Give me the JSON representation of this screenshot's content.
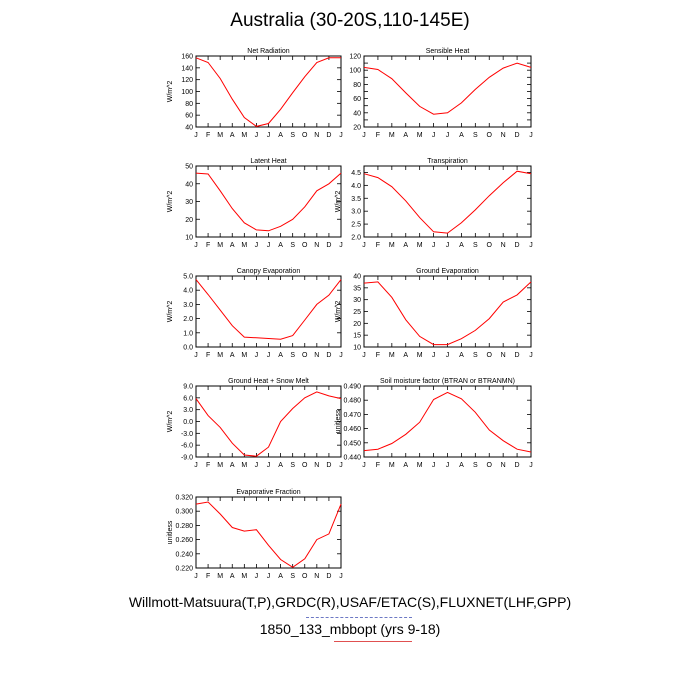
{
  "page": {
    "title": "Australia (30-20S,110-145E)",
    "footer_line1": "Willmott-Matsuura(T,P),GRDC(R),USAF/ETAC(S),FLUXNET(LHF,GPP)",
    "footer_line2": "1850_133_mbbopt (yrs 9-18)"
  },
  "colors": {
    "line": "#ff0000",
    "axis": "#000000",
    "underline1": "#6c78c4",
    "underline2": "#e05050"
  },
  "chart_data": [
    {
      "type": "line",
      "title": "Net Radiation",
      "ylabel": "W/m^2",
      "x": [
        "J",
        "F",
        "M",
        "A",
        "M",
        "J",
        "J",
        "A",
        "S",
        "O",
        "N",
        "D",
        "J"
      ],
      "values": [
        157,
        149,
        122,
        87,
        56,
        41,
        46,
        70,
        98,
        125,
        149,
        157,
        157
      ],
      "ylim": [
        40,
        160
      ],
      "yticks": [
        40,
        60,
        80,
        100,
        120,
        140,
        160
      ],
      "ytick_labels": [
        "40",
        "60",
        "80",
        "100",
        "120",
        "140",
        "160"
      ]
    },
    {
      "type": "line",
      "title": "Sensible Heat",
      "ylabel": "",
      "x": [
        "J",
        "F",
        "M",
        "A",
        "M",
        "J",
        "J",
        "A",
        "S",
        "O",
        "N",
        "D",
        "J"
      ],
      "values": [
        104,
        101,
        88,
        68,
        49,
        38,
        40,
        54,
        73,
        90,
        103,
        110,
        104
      ],
      "ylim": [
        20,
        120
      ],
      "yticks": [
        20,
        30,
        40,
        50,
        60,
        70,
        80,
        90,
        100,
        110,
        120
      ],
      "ytick_labels": [
        "20",
        "",
        "40",
        "",
        "60",
        "",
        "80",
        "",
        "100",
        "",
        "120"
      ]
    },
    {
      "type": "line",
      "title": "Latent Heat",
      "ylabel": "W/m^2",
      "x": [
        "J",
        "F",
        "M",
        "A",
        "M",
        "J",
        "J",
        "A",
        "S",
        "O",
        "N",
        "D",
        "J"
      ],
      "values": [
        46,
        45.5,
        36,
        26,
        18,
        14,
        13.5,
        16,
        20,
        27,
        36,
        40,
        46
      ],
      "ylim": [
        10,
        50
      ],
      "yticks": [
        10,
        20,
        30,
        40,
        50
      ],
      "ytick_labels": [
        "10",
        "20",
        "30",
        "40",
        "50"
      ]
    },
    {
      "type": "line",
      "title": "Transpiration",
      "ylabel": "W/m^2",
      "x": [
        "J",
        "F",
        "M",
        "A",
        "M",
        "J",
        "J",
        "A",
        "S",
        "O",
        "N",
        "D",
        "J"
      ],
      "values": [
        4.45,
        4.3,
        3.95,
        3.4,
        2.75,
        2.2,
        2.15,
        2.55,
        3.05,
        3.6,
        4.1,
        4.55,
        4.45
      ],
      "ylim": [
        2.0,
        4.75
      ],
      "yticks": [
        2.0,
        2.5,
        3.0,
        3.5,
        4.0,
        4.5
      ],
      "ytick_labels": [
        "2.0",
        "2.5",
        "3.0",
        "3.5",
        "4.0",
        "4.5"
      ]
    },
    {
      "type": "line",
      "title": "Canopy Evaporation",
      "ylabel": "W/m^2",
      "x": [
        "J",
        "F",
        "M",
        "A",
        "M",
        "J",
        "J",
        "A",
        "S",
        "O",
        "N",
        "D",
        "J"
      ],
      "values": [
        4.75,
        3.7,
        2.6,
        1.5,
        0.7,
        0.65,
        0.6,
        0.55,
        0.8,
        1.9,
        3.0,
        3.65,
        4.75
      ],
      "ylim": [
        0.0,
        5.0
      ],
      "yticks": [
        0.0,
        1.0,
        2.0,
        3.0,
        4.0,
        5.0
      ],
      "ytick_labels": [
        "0.0",
        "1.0",
        "2.0",
        "3.0",
        "4.0",
        "5.0"
      ]
    },
    {
      "type": "line",
      "title": "Ground Evaporation",
      "ylabel": "W/m^2",
      "x": [
        "J",
        "F",
        "M",
        "A",
        "M",
        "J",
        "J",
        "A",
        "S",
        "O",
        "N",
        "D",
        "J"
      ],
      "values": [
        37,
        37.5,
        31,
        21.5,
        14.5,
        11,
        11,
        13.5,
        17,
        22,
        29,
        32,
        37.5
      ],
      "ylim": [
        10,
        40
      ],
      "yticks": [
        10,
        15,
        20,
        25,
        30,
        35,
        40
      ],
      "ytick_labels": [
        "10",
        "15",
        "20",
        "25",
        "30",
        "35",
        "40"
      ]
    },
    {
      "type": "line",
      "title": "Ground Heat + Snow Melt",
      "ylabel": "W/m^2",
      "x": [
        "J",
        "F",
        "M",
        "A",
        "M",
        "J",
        "J",
        "A",
        "S",
        "O",
        "N",
        "D",
        "J"
      ],
      "values": [
        5.8,
        1.5,
        -1.5,
        -5.5,
        -8.5,
        -8.8,
        -6.5,
        0,
        3.3,
        6.0,
        7.5,
        6.5,
        5.8
      ],
      "ylim": [
        -9.0,
        9.0
      ],
      "yticks": [
        -9.0,
        -6.0,
        -3.0,
        0.0,
        3.0,
        6.0,
        9.0
      ],
      "ytick_labels": [
        "-9.0",
        "-6.0",
        "-3.0",
        "0.0",
        "3.0",
        "6.0",
        "9.0"
      ]
    },
    {
      "type": "line",
      "title": "Soil moisture factor (BTRAN or BTRANMN)",
      "ylabel": "unitless",
      "x": [
        "J",
        "F",
        "M",
        "A",
        "M",
        "J",
        "J",
        "A",
        "S",
        "O",
        "N",
        "D",
        "J"
      ],
      "values": [
        0.4445,
        0.4455,
        0.4495,
        0.456,
        0.4645,
        0.4805,
        0.4855,
        0.481,
        0.4715,
        0.459,
        0.4515,
        0.4455,
        0.4435
      ],
      "ylim": [
        0.44,
        0.49
      ],
      "yticks": [
        0.44,
        0.45,
        0.46,
        0.47,
        0.48,
        0.49
      ],
      "ytick_labels": [
        "0.440",
        "0.450",
        "0.460",
        "0.470",
        "0.480",
        "0.490"
      ]
    },
    {
      "type": "line",
      "title": "Evaporative Fraction",
      "ylabel": "unitless",
      "x": [
        "J",
        "F",
        "M",
        "A",
        "M",
        "J",
        "J",
        "A",
        "S",
        "O",
        "N",
        "D",
        "J"
      ],
      "values": [
        0.31,
        0.313,
        0.296,
        0.277,
        0.272,
        0.274,
        0.252,
        0.232,
        0.221,
        0.233,
        0.26,
        0.268,
        0.31
      ],
      "ylim": [
        0.22,
        0.32
      ],
      "yticks": [
        0.22,
        0.24,
        0.26,
        0.28,
        0.3,
        0.32
      ],
      "ytick_labels": [
        "0.220",
        "0.240",
        "0.260",
        "0.280",
        "0.300",
        "0.320"
      ]
    }
  ]
}
